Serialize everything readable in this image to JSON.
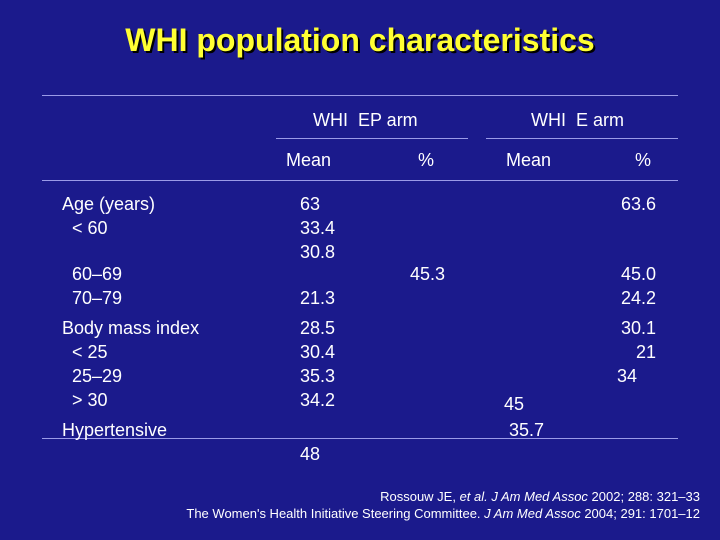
{
  "title": "WHI population characteristics",
  "colors": {
    "background": "#1b1a8c",
    "title": "#ffff33",
    "rule": "#9b9be8",
    "text": "#ffffff"
  },
  "table": {
    "group_headers": [
      "WHI  EP arm",
      "WHI  E arm"
    ],
    "sub_headers": [
      "Mean",
      "%",
      "Mean",
      "%"
    ],
    "row_labels": [
      "Age (years)",
      "  < 60",
      "  60–69",
      "  70–79",
      "Body mass index",
      "  < 25",
      "  25–29",
      "  > 30",
      "Hypertensive"
    ],
    "ep_mean": [
      "63",
      "33.4",
      "30.8",
      "21.3",
      "28.5",
      "30.4",
      "35.3",
      "34.2",
      "48"
    ],
    "ep_pct": [
      "45.3"
    ],
    "e_mean": [
      "45",
      " 35.7"
    ],
    "e_pct": [
      "63.6",
      "45.0",
      "24.2",
      "30.1",
      "21",
      "34"
    ]
  },
  "citations": [
    {
      "pre": "Rossouw JE, ",
      "italic": "et al. J Am Med Assoc",
      "post": " 2002; 288: 321–33"
    },
    {
      "pre": "The Women's Health Initiative Steering Committee. ",
      "italic": "J Am Med Assoc",
      "post": " 2004; 291: 1701–12"
    }
  ]
}
